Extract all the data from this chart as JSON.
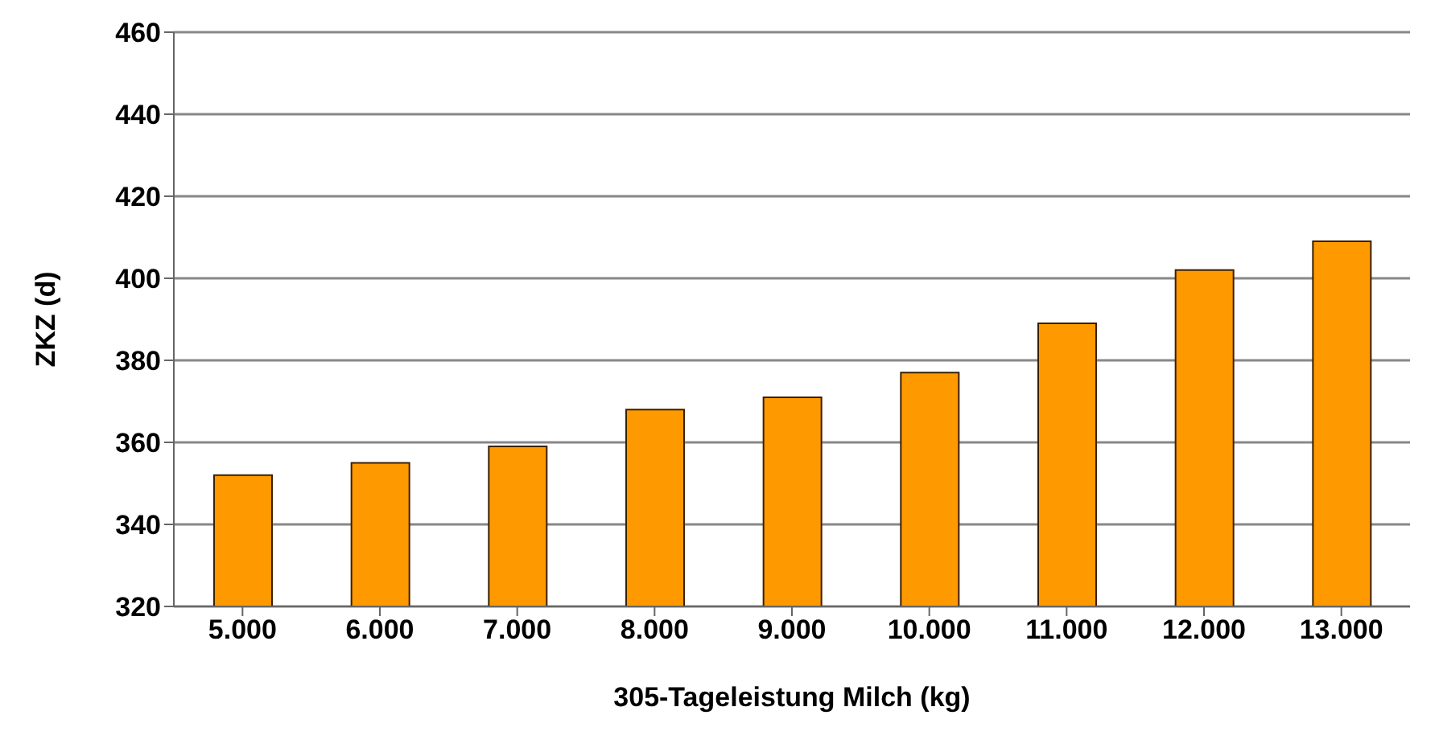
{
  "chart_data": {
    "type": "bar",
    "xlabel": "305-Tageleistung Milch (kg)",
    "ylabel": "ZKZ (d)",
    "categories": [
      "5.000",
      "6.000",
      "7.000",
      "8.000",
      "9.000",
      "10.000",
      "11.000",
      "12.000",
      "13.000"
    ],
    "values": [
      352,
      355,
      359,
      368,
      371,
      377,
      389,
      402,
      409
    ],
    "color": "#ff9900",
    "ylim": [
      320,
      460
    ],
    "yticks": [
      320,
      340,
      360,
      380,
      400,
      420,
      440,
      460
    ],
    "grid": "y"
  }
}
